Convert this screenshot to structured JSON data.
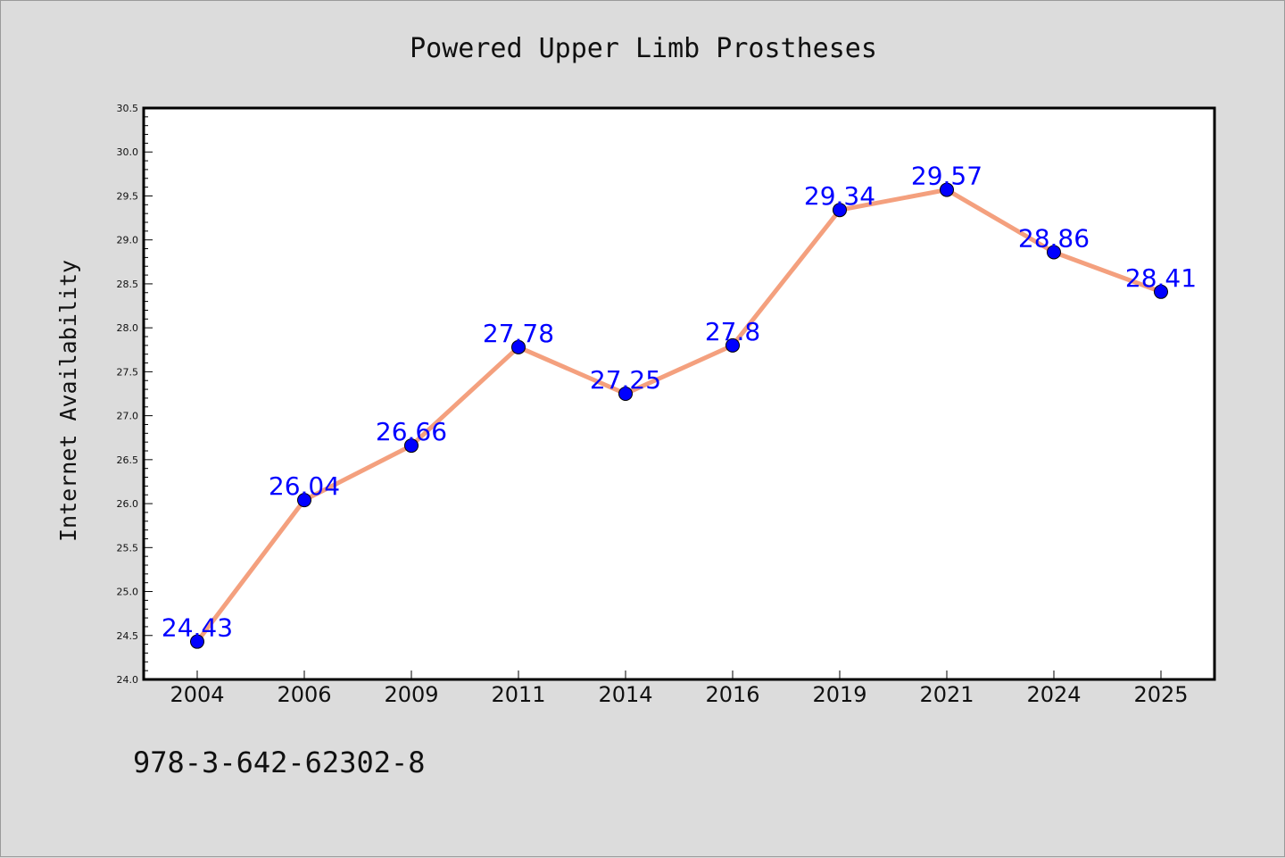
{
  "colors": {
    "background": "#dcdcdc",
    "plot_area": "#ffffff",
    "line": "#f4a07e",
    "marker": "#0000ff",
    "label": "#0000ff"
  },
  "footer": {
    "code": "978-3-642-62302-8"
  },
  "chart_data": {
    "type": "line",
    "title": "Powered Upper Limb Prostheses",
    "xlabel": "",
    "ylabel": "Internet Availability",
    "categories": [
      "2004",
      "2006",
      "2009",
      "2011",
      "2014",
      "2016",
      "2019",
      "2021",
      "2024",
      "2025"
    ],
    "series": [
      {
        "values": [
          24.43,
          26.04,
          26.66,
          27.78,
          27.25,
          27.8,
          29.34,
          29.57,
          28.86,
          28.41
        ],
        "labels": [
          "24.43",
          "26.04",
          "26.66",
          "27.78",
          "27.25",
          "27.8",
          "29.34",
          "29.57",
          "28.86",
          "28.41"
        ]
      }
    ],
    "ylim": [
      24.0,
      30.5
    ],
    "yticks": [
      "24.0",
      "24.5",
      "25.0",
      "25.5",
      "26.0",
      "26.5",
      "27.0",
      "27.5",
      "28.0",
      "28.5",
      "29.0",
      "29.5",
      "30.0",
      "30.5"
    ],
    "grid": false,
    "legend": "none"
  }
}
